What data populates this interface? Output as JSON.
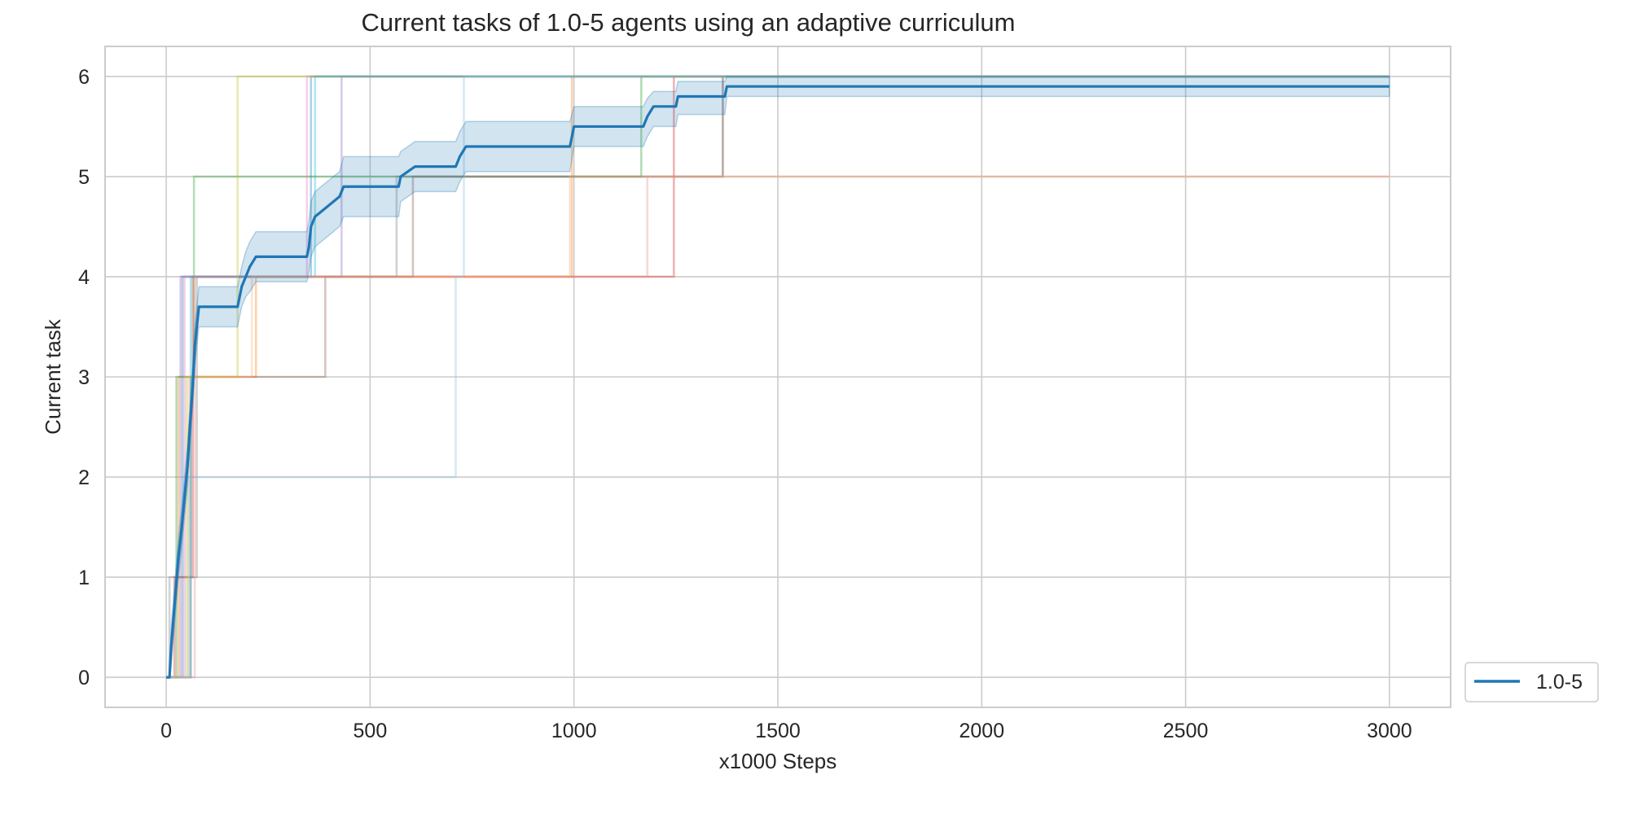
{
  "chart_data": {
    "type": "line",
    "title": "Current tasks of 1.0-5 agents using an adaptive curriculum",
    "xlabel": "x1000 Steps",
    "ylabel": "Current task",
    "xlim": [
      -150,
      3150
    ],
    "ylim": [
      -0.3,
      6.3
    ],
    "xticks": [
      0,
      500,
      1000,
      1500,
      2000,
      2500,
      3000
    ],
    "yticks": [
      0,
      1,
      2,
      3,
      4,
      5,
      6
    ],
    "grid": true,
    "legend_position": "outside-bottom-right",
    "legend": [
      "1.0-5"
    ],
    "series": [
      {
        "name": "1.0-5",
        "color": "#1f77b4",
        "band_color": "#1f77b4",
        "mean": [
          [
            0,
            0
          ],
          [
            8,
            0
          ],
          [
            12,
            0.3
          ],
          [
            18,
            0.6
          ],
          [
            24,
            0.9
          ],
          [
            30,
            1.2
          ],
          [
            38,
            1.5
          ],
          [
            45,
            1.8
          ],
          [
            52,
            2.1
          ],
          [
            58,
            2.5
          ],
          [
            65,
            2.9
          ],
          [
            70,
            3.3
          ],
          [
            75,
            3.5
          ],
          [
            80,
            3.7
          ],
          [
            175,
            3.7
          ],
          [
            185,
            3.9
          ],
          [
            195,
            4.0
          ],
          [
            205,
            4.1
          ],
          [
            220,
            4.2
          ],
          [
            345,
            4.2
          ],
          [
            350,
            4.3
          ],
          [
            355,
            4.5
          ],
          [
            365,
            4.6
          ],
          [
            395,
            4.7
          ],
          [
            425,
            4.8
          ],
          [
            435,
            4.9
          ],
          [
            570,
            4.9
          ],
          [
            575,
            5.0
          ],
          [
            610,
            5.1
          ],
          [
            710,
            5.1
          ],
          [
            720,
            5.2
          ],
          [
            735,
            5.3
          ],
          [
            990,
            5.3
          ],
          [
            1000,
            5.5
          ],
          [
            1170,
            5.5
          ],
          [
            1180,
            5.6
          ],
          [
            1195,
            5.7
          ],
          [
            1250,
            5.7
          ],
          [
            1255,
            5.8
          ],
          [
            1370,
            5.8
          ],
          [
            1375,
            5.9
          ],
          [
            3000,
            5.9
          ]
        ],
        "lower": [
          [
            0,
            0
          ],
          [
            8,
            0
          ],
          [
            12,
            0.1
          ],
          [
            18,
            0.4
          ],
          [
            24,
            0.7
          ],
          [
            30,
            1.0
          ],
          [
            38,
            1.3
          ],
          [
            45,
            1.6
          ],
          [
            52,
            1.9
          ],
          [
            58,
            2.3
          ],
          [
            65,
            2.7
          ],
          [
            70,
            3.1
          ],
          [
            75,
            3.3
          ],
          [
            80,
            3.5
          ],
          [
            175,
            3.5
          ],
          [
            185,
            3.7
          ],
          [
            195,
            3.8
          ],
          [
            205,
            3.85
          ],
          [
            220,
            3.95
          ],
          [
            345,
            3.95
          ],
          [
            350,
            4.05
          ],
          [
            355,
            4.2
          ],
          [
            365,
            4.3
          ],
          [
            395,
            4.4
          ],
          [
            425,
            4.5
          ],
          [
            435,
            4.6
          ],
          [
            570,
            4.6
          ],
          [
            575,
            4.75
          ],
          [
            610,
            4.85
          ],
          [
            710,
            4.85
          ],
          [
            720,
            4.95
          ],
          [
            735,
            5.05
          ],
          [
            990,
            5.05
          ],
          [
            1000,
            5.3
          ],
          [
            1170,
            5.3
          ],
          [
            1180,
            5.4
          ],
          [
            1195,
            5.5
          ],
          [
            1250,
            5.5
          ],
          [
            1255,
            5.62
          ],
          [
            1370,
            5.62
          ],
          [
            1375,
            5.8
          ],
          [
            3000,
            5.8
          ]
        ],
        "upper": [
          [
            0,
            0
          ],
          [
            8,
            0
          ],
          [
            12,
            0.5
          ],
          [
            18,
            0.8
          ],
          [
            24,
            1.1
          ],
          [
            30,
            1.4
          ],
          [
            38,
            1.7
          ],
          [
            45,
            2.0
          ],
          [
            52,
            2.3
          ],
          [
            58,
            2.7
          ],
          [
            65,
            3.1
          ],
          [
            70,
            3.5
          ],
          [
            75,
            3.7
          ],
          [
            80,
            3.9
          ],
          [
            175,
            3.9
          ],
          [
            185,
            4.1
          ],
          [
            195,
            4.25
          ],
          [
            205,
            4.35
          ],
          [
            220,
            4.45
          ],
          [
            345,
            4.45
          ],
          [
            350,
            4.55
          ],
          [
            355,
            4.75
          ],
          [
            365,
            4.85
          ],
          [
            395,
            4.95
          ],
          [
            425,
            5.05
          ],
          [
            435,
            5.2
          ],
          [
            570,
            5.2
          ],
          [
            575,
            5.25
          ],
          [
            610,
            5.35
          ],
          [
            710,
            5.35
          ],
          [
            720,
            5.45
          ],
          [
            735,
            5.55
          ],
          [
            990,
            5.55
          ],
          [
            1000,
            5.7
          ],
          [
            1170,
            5.7
          ],
          [
            1180,
            5.78
          ],
          [
            1195,
            5.85
          ],
          [
            1250,
            5.85
          ],
          [
            1255,
            5.95
          ],
          [
            1370,
            5.95
          ],
          [
            1375,
            6.0
          ],
          [
            3000,
            6.0
          ]
        ]
      }
    ],
    "individual_runs": [
      {
        "color": "#1f77b4",
        "steps": [
          [
            0,
            0
          ],
          [
            40,
            4
          ],
          [
            355,
            6
          ],
          [
            3000,
            6
          ]
        ]
      },
      {
        "color": "#ff7f0e",
        "steps": [
          [
            0,
            0
          ],
          [
            30,
            3
          ],
          [
            220,
            4
          ],
          [
            995,
            6
          ],
          [
            3000,
            6
          ]
        ]
      },
      {
        "color": "#2ca02c",
        "steps": [
          [
            0,
            0
          ],
          [
            25,
            3
          ],
          [
            68,
            5
          ],
          [
            1165,
            6
          ],
          [
            3000,
            6
          ]
        ]
      },
      {
        "color": "#d62728",
        "steps": [
          [
            0,
            0
          ],
          [
            20,
            1
          ],
          [
            65,
            4
          ],
          [
            1245,
            6
          ],
          [
            3000,
            6
          ]
        ]
      },
      {
        "color": "#9467bd",
        "steps": [
          [
            0,
            0
          ],
          [
            35,
            4
          ],
          [
            430,
            6
          ],
          [
            3000,
            6
          ]
        ]
      },
      {
        "color": "#8c564b",
        "steps": [
          [
            0,
            0
          ],
          [
            60,
            3
          ],
          [
            390,
            4
          ],
          [
            605,
            5
          ],
          [
            1365,
            6
          ],
          [
            3000,
            6
          ]
        ]
      },
      {
        "color": "#e377c2",
        "steps": [
          [
            0,
            0
          ],
          [
            45,
            4
          ],
          [
            345,
            6
          ],
          [
            3000,
            6
          ]
        ]
      },
      {
        "color": "#7f7f7f",
        "steps": [
          [
            0,
            0
          ],
          [
            8,
            1
          ],
          [
            75,
            4
          ],
          [
            565,
            5
          ],
          [
            1365,
            6
          ],
          [
            3000,
            6
          ]
        ]
      },
      {
        "color": "#bcbd22",
        "steps": [
          [
            0,
            0
          ],
          [
            50,
            3
          ],
          [
            175,
            6
          ],
          [
            3000,
            6
          ]
        ]
      },
      {
        "color": "#17becf",
        "steps": [
          [
            0,
            0
          ],
          [
            60,
            4
          ],
          [
            365,
            6
          ],
          [
            3000,
            6
          ]
        ]
      },
      {
        "color": "#e8928c",
        "steps": [
          [
            0,
            0
          ],
          [
            70,
            4
          ],
          [
            1180,
            5
          ],
          [
            3000,
            5
          ]
        ]
      },
      {
        "color": "#f4b183",
        "steps": [
          [
            0,
            0
          ],
          [
            55,
            3
          ],
          [
            210,
            4
          ],
          [
            990,
            5
          ],
          [
            3000,
            5
          ]
        ]
      },
      {
        "color": "#8fbfe0",
        "steps": [
          [
            0,
            0
          ],
          [
            55,
            2
          ],
          [
            710,
            4
          ],
          [
            730,
            6
          ],
          [
            3000,
            6
          ]
        ]
      }
    ]
  }
}
